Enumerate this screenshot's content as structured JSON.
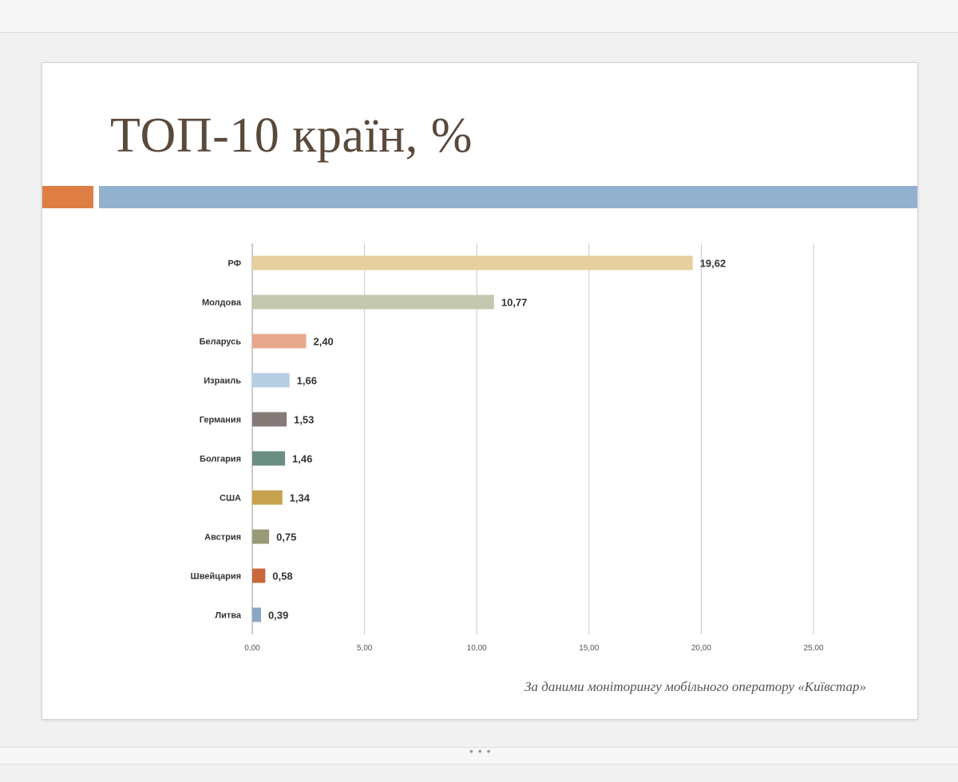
{
  "slide": {
    "title": "ТОП-10 країн, %",
    "source_note": "За даними моніторингу мобільного оператору «Київстар»",
    "accent_colors": [
      "#de7e44",
      "#93b2cf"
    ]
  },
  "chart_data": {
    "type": "bar",
    "orientation": "horizontal",
    "title": "ТОП-10 країн, %",
    "categories": [
      "РФ",
      "Молдова",
      "Беларусь",
      "Израиль",
      "Германия",
      "Болгария",
      "США",
      "Австрия",
      "Швейцария",
      "Литва"
    ],
    "values": [
      19.62,
      10.77,
      2.4,
      1.66,
      1.53,
      1.46,
      1.34,
      0.75,
      0.58,
      0.39
    ],
    "value_labels": [
      "19,62",
      "10,77",
      "2,40",
      "1,66",
      "1,53",
      "1,46",
      "1,34",
      "0,75",
      "0,58",
      "0,39"
    ],
    "bar_colors": [
      "#e8cf9f",
      "#c5c8b0",
      "#e8a88e",
      "#b8cfe2",
      "#857a78",
      "#6b8e82",
      "#c7a24e",
      "#9a9a78",
      "#c9683d",
      "#8aa6c6"
    ],
    "xticks": [
      "0,00",
      "5,00",
      "10,00",
      "15,00",
      "20,00",
      "25,00"
    ],
    "xlim": [
      0,
      25
    ],
    "xlabel": "",
    "ylabel": "",
    "grid": true,
    "legend": "none"
  }
}
